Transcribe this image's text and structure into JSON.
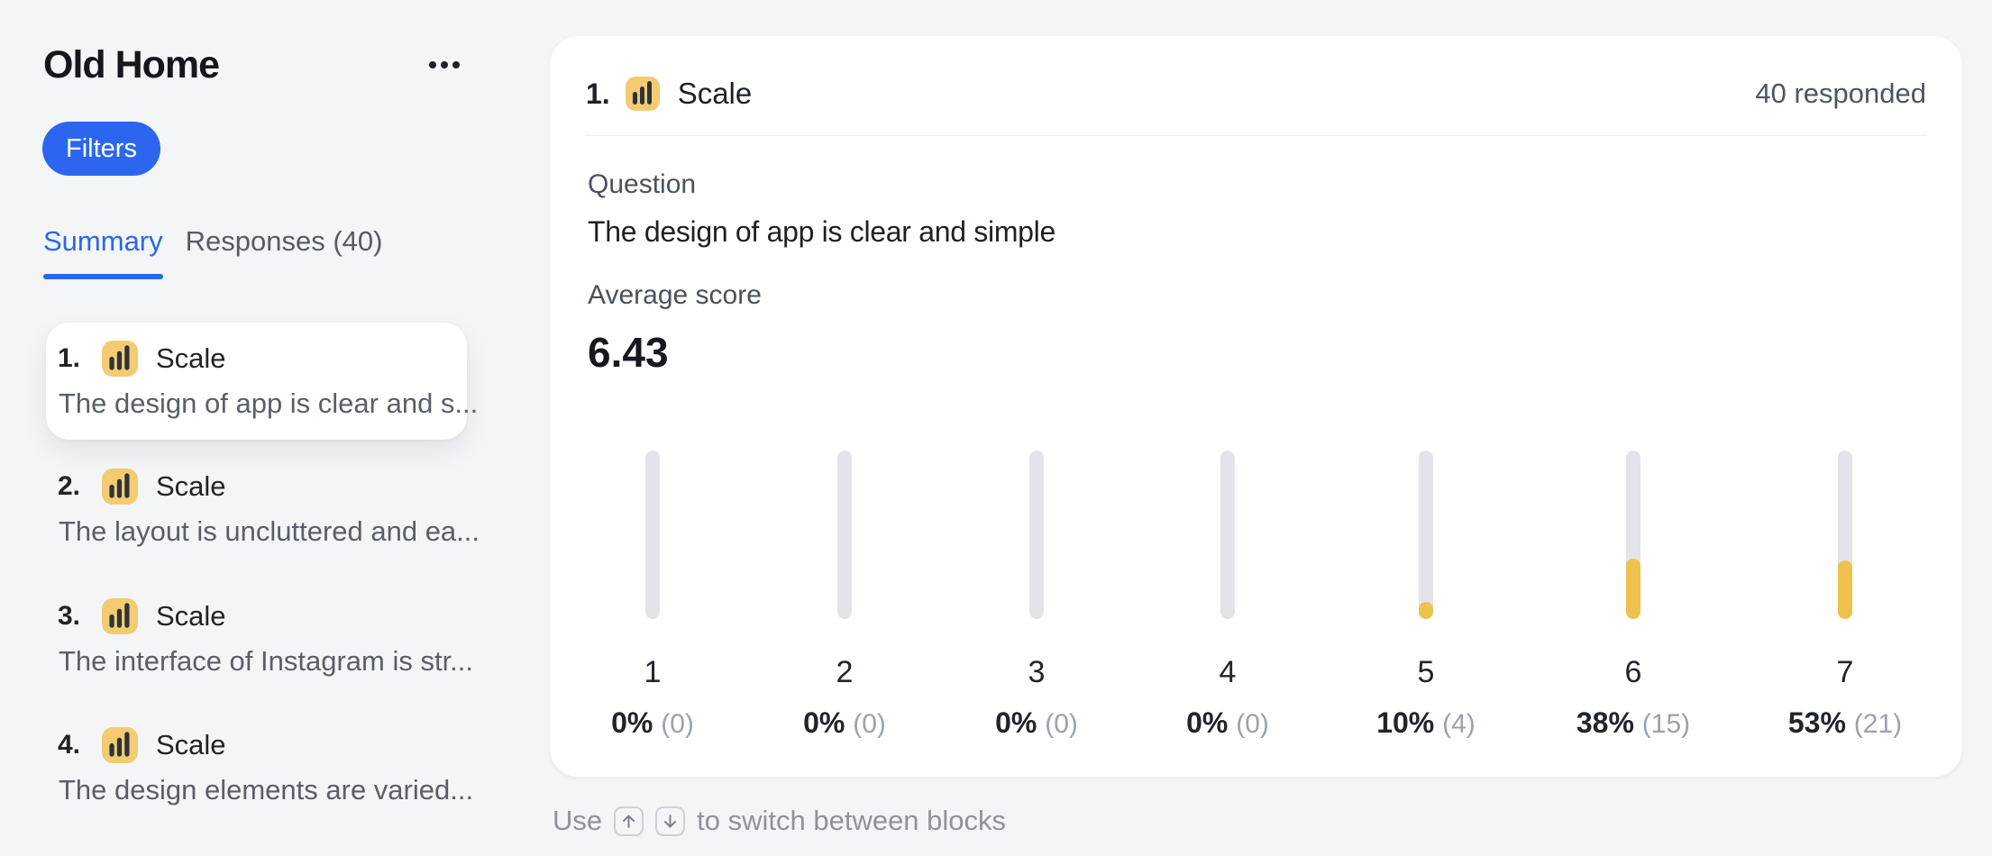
{
  "sidebar": {
    "title": "Old Home",
    "filters_button": "Filters",
    "tabs": [
      {
        "label": "Summary",
        "active": true
      },
      {
        "label": "Responses (40)",
        "active": false
      }
    ],
    "blocks": [
      {
        "number": "1.",
        "type_label": "Scale",
        "question": "The design of app is clear and s...",
        "selected": true
      },
      {
        "number": "2.",
        "type_label": "Scale",
        "question": "The layout is uncluttered and ea...",
        "selected": false
      },
      {
        "number": "3.",
        "type_label": "Scale",
        "question": "The interface of Instagram is str...",
        "selected": false
      },
      {
        "number": "4.",
        "type_label": "Scale",
        "question": "The design elements are varied...",
        "selected": false
      }
    ]
  },
  "main": {
    "block_number": "1.",
    "block_type": "Scale",
    "responded": "40 responded",
    "question_label": "Question",
    "question": "The design of app is clear and simple",
    "average_label": "Average score",
    "average_value": "6.43",
    "chart_data": {
      "type": "bar",
      "categories": [
        "1",
        "2",
        "3",
        "4",
        "5",
        "6",
        "7"
      ],
      "values_pct": [
        0,
        0,
        0,
        0,
        10,
        38,
        53
      ],
      "counts": [
        0,
        0,
        0,
        0,
        4,
        15,
        21
      ],
      "fill_height_pct_as_rendered": [
        0,
        0,
        0,
        0,
        10,
        36,
        35
      ],
      "ylim": [
        0,
        100
      ],
      "bar_color": "#efc14d",
      "track_color": "#e2e4e9"
    },
    "hint": {
      "prefix": "Use",
      "keys": [
        "↑",
        "↓"
      ],
      "suffix": "to switch between blocks"
    }
  },
  "colors": {
    "background": "#f4f5f7",
    "card": "#ffffff",
    "accent_blue": "#2c66f0",
    "icon_amber": "#f2cb72",
    "bar_amber": "#efc14d",
    "text_dark": "#191d24",
    "text_gray": "#585f6a"
  }
}
